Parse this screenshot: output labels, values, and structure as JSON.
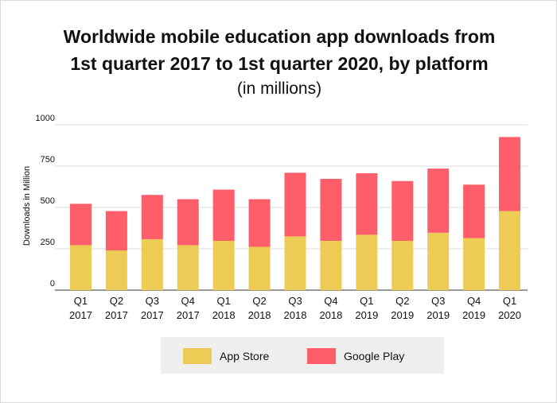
{
  "chart_data": {
    "type": "bar",
    "stacked": true,
    "title": "Worldwide mobile education app downloads from 1st quarter 2017 to 1st quarter 2020, by platform",
    "title_line1": "Worldwide mobile education app downloads from",
    "title_line2": "1st quarter 2017 to 1st quarter 2020, by platform",
    "subtitle": "(in millions)",
    "ylabel": "Downloads in Million",
    "xlabel": "",
    "ylim": [
      0,
      1000
    ],
    "yticks": [
      "0",
      "250",
      "500",
      "750",
      "1000"
    ],
    "categories": [
      [
        "Q1",
        "2017"
      ],
      [
        "Q2",
        "2017"
      ],
      [
        "Q3",
        "2017"
      ],
      [
        "Q4",
        "2017"
      ],
      [
        "Q1",
        "2018"
      ],
      [
        "Q2",
        "2018"
      ],
      [
        "Q3",
        "2018"
      ],
      [
        "Q4",
        "2018"
      ],
      [
        "Q1",
        "2019"
      ],
      [
        "Q2",
        "2019"
      ],
      [
        "Q3",
        "2019"
      ],
      [
        "Q4",
        "2019"
      ],
      [
        "Q1",
        "2020"
      ]
    ],
    "series": [
      {
        "name": "App Store",
        "color": "#eecb55",
        "values": [
          272,
          240,
          308,
          272,
          298,
          262,
          325,
          298,
          335,
          298,
          347,
          315,
          478
        ]
      },
      {
        "name": "Google Play",
        "color": "#fe5e69",
        "values": [
          250,
          238,
          268,
          278,
          310,
          288,
          385,
          375,
          372,
          362,
          388,
          323,
          448
        ]
      }
    ],
    "grid": true,
    "legend_position": "bottom"
  }
}
